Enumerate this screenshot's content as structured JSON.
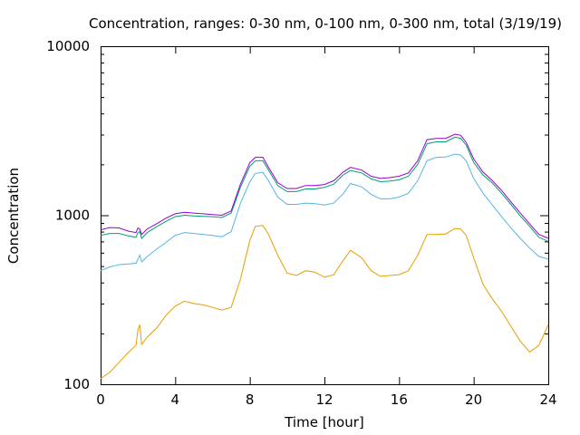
{
  "chart_data": {
    "type": "line",
    "title": "Concentration, ranges: 0-30 nm, 0-100 nm, 0-300 nm, total (3/19/19)",
    "xlabel": "Time [hour]",
    "ylabel": "Concentration",
    "xlim": [
      0,
      24
    ],
    "ylim": [
      100,
      10000
    ],
    "yscale": "log",
    "xticks": [
      0,
      4,
      8,
      12,
      16,
      20,
      24
    ],
    "xtick_labels": [
      "0",
      "4",
      "8",
      "12",
      "16",
      "20",
      "24"
    ],
    "yticks": [
      100,
      1000,
      10000
    ],
    "ytick_labels": [
      "100",
      "1000",
      "10000"
    ],
    "grid": false,
    "legend": "none",
    "series": [
      {
        "color": "#e69f00",
        "x": [
          0,
          0.5,
          1,
          1.5,
          1.9,
          2.0,
          2.1,
          2.2,
          2.5,
          3,
          3.5,
          4,
          4.5,
          5,
          5.5,
          6,
          6.5,
          7,
          7.5,
          8,
          8.3,
          8.7,
          9,
          9.5,
          10,
          10.5,
          11,
          11.5,
          12,
          12.5,
          13,
          13.4,
          14,
          14.5,
          15,
          15.5,
          16,
          16.5,
          17,
          17.5,
          18,
          18.5,
          19,
          19.3,
          19.6,
          20,
          20.5,
          21,
          21.5,
          22,
          22.5,
          23,
          23.5,
          24
        ],
        "y": [
          108,
          118,
          135,
          155,
          170,
          210,
          225,
          172,
          190,
          215,
          255,
          290,
          310,
          300,
          295,
          285,
          275,
          285,
          420,
          710,
          860,
          870,
          770,
          580,
          455,
          440,
          470,
          460,
          430,
          445,
          540,
          620,
          560,
          470,
          435,
          440,
          445,
          470,
          580,
          770,
          770,
          775,
          835,
          830,
          760,
          560,
          390,
          320,
          270,
          220,
          180,
          155,
          170,
          225
        ]
      },
      {
        "color": "#56b4e9",
        "x": [
          0,
          0.5,
          1,
          1.5,
          1.9,
          2.0,
          2.1,
          2.2,
          2.5,
          3,
          3.5,
          4,
          4.5,
          5,
          5.5,
          6,
          6.5,
          7,
          7.5,
          8,
          8.3,
          8.7,
          9,
          9.5,
          10,
          10.5,
          11,
          11.5,
          12,
          12.5,
          13,
          13.4,
          14,
          14.5,
          15,
          15.5,
          16,
          16.5,
          17,
          17.5,
          18,
          18.5,
          19,
          19.3,
          19.6,
          20,
          20.5,
          21,
          21.5,
          22,
          22.5,
          23,
          23.5,
          24
        ],
        "y": [
          470,
          495,
          510,
          515,
          520,
          550,
          580,
          530,
          570,
          630,
          690,
          760,
          790,
          780,
          770,
          760,
          745,
          800,
          1180,
          1580,
          1770,
          1790,
          1600,
          1280,
          1160,
          1160,
          1180,
          1170,
          1150,
          1180,
          1340,
          1540,
          1470,
          1330,
          1250,
          1250,
          1280,
          1350,
          1600,
          2100,
          2200,
          2210,
          2300,
          2270,
          2100,
          1650,
          1350,
          1150,
          980,
          840,
          730,
          640,
          570,
          550
        ]
      },
      {
        "color": "#009e73",
        "x": [
          0,
          0.5,
          1,
          1.5,
          1.9,
          2.0,
          2.1,
          2.2,
          2.5,
          3,
          3.5,
          4,
          4.5,
          5,
          5.5,
          6,
          6.5,
          7,
          7.5,
          8,
          8.3,
          8.7,
          9,
          9.5,
          10,
          10.5,
          11,
          11.5,
          12,
          12.5,
          13,
          13.4,
          14,
          14.5,
          15,
          15.5,
          16,
          16.5,
          17,
          17.5,
          18,
          18.5,
          19,
          19.3,
          19.6,
          20,
          20.5,
          21,
          21.5,
          22,
          22.5,
          23,
          23.5,
          24
        ],
        "y": [
          760,
          780,
          780,
          755,
          740,
          790,
          800,
          730,
          790,
          855,
          920,
          980,
          1000,
          990,
          985,
          980,
          970,
          1030,
          1470,
          1950,
          2100,
          2100,
          1850,
          1500,
          1380,
          1380,
          1430,
          1430,
          1460,
          1530,
          1730,
          1840,
          1780,
          1640,
          1580,
          1590,
          1620,
          1700,
          2000,
          2650,
          2720,
          2720,
          2900,
          2850,
          2600,
          2050,
          1730,
          1550,
          1350,
          1160,
          990,
          860,
          740,
          700
        ]
      },
      {
        "color": "#9400d3",
        "x": [
          0,
          0.5,
          1,
          1.5,
          1.9,
          2.0,
          2.1,
          2.2,
          2.5,
          3,
          3.5,
          4,
          4.5,
          5,
          5.5,
          6,
          6.5,
          7,
          7.5,
          8,
          8.3,
          8.7,
          9,
          9.5,
          10,
          10.5,
          11,
          11.5,
          12,
          12.5,
          13,
          13.4,
          14,
          14.5,
          15,
          15.5,
          16,
          16.5,
          17,
          17.5,
          18,
          18.5,
          19,
          19.3,
          19.6,
          20,
          20.5,
          21,
          21.5,
          22,
          22.5,
          23,
          23.5,
          24
        ],
        "y": [
          820,
          845,
          840,
          805,
          790,
          840,
          830,
          770,
          830,
          890,
          960,
          1020,
          1040,
          1030,
          1020,
          1010,
          1000,
          1060,
          1530,
          2050,
          2200,
          2200,
          1920,
          1560,
          1440,
          1440,
          1500,
          1500,
          1520,
          1600,
          1800,
          1920,
          1850,
          1700,
          1650,
          1670,
          1700,
          1780,
          2100,
          2800,
          2850,
          2850,
          3020,
          2970,
          2700,
          2150,
          1800,
          1600,
          1400,
          1200,
          1030,
          890,
          770,
          730
        ]
      }
    ]
  }
}
